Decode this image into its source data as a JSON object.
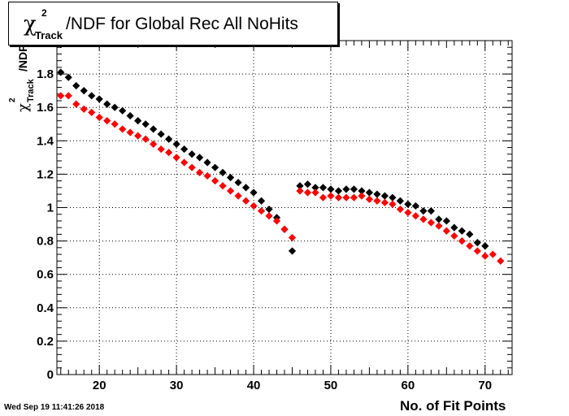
{
  "chart_data": {
    "type": "scatter",
    "title": {
      "symbol": "χ",
      "sup": "2",
      "sub": "Track",
      "rest": "/NDF for Global Rec All NoHits"
    },
    "xlabel": "No. of Fit Points",
    "ylabel": {
      "symbol": "χ",
      "sup": "2",
      "sub": "Track",
      "rest": "/NDF"
    },
    "xlim": [
      14.5,
      73.5
    ],
    "ylim": [
      0,
      2.0
    ],
    "x_ticks": [
      20,
      30,
      40,
      50,
      60,
      70
    ],
    "y_ticks": [
      0,
      0.2,
      0.4,
      0.6,
      0.8,
      1,
      1.2,
      1.4,
      1.6,
      1.8
    ],
    "y_tick_labels": [
      "0",
      "0.2",
      "0.4",
      "0.6",
      "0.8",
      "1",
      "1.2",
      "1.4",
      "1.6",
      "1.8"
    ],
    "grid": true,
    "series": [
      {
        "color": "#000000",
        "x": [
          15,
          16,
          17,
          18,
          19,
          20,
          21,
          22,
          23,
          24,
          25,
          26,
          27,
          28,
          29,
          30,
          31,
          32,
          33,
          34,
          35,
          36,
          37,
          38,
          39,
          40,
          41,
          42,
          43,
          44,
          45,
          46,
          47,
          48,
          49,
          50,
          51,
          52,
          53,
          54,
          55,
          56,
          57,
          58,
          59,
          60,
          61,
          62,
          63,
          64,
          65,
          66,
          67,
          68,
          69,
          70
        ],
        "y": [
          1.81,
          1.78,
          1.73,
          1.7,
          1.67,
          1.65,
          1.62,
          1.6,
          1.58,
          1.55,
          1.52,
          1.5,
          1.47,
          1.44,
          1.41,
          1.38,
          1.35,
          1.32,
          1.3,
          1.27,
          1.24,
          1.21,
          1.18,
          1.15,
          1.12,
          1.09,
          1.04,
          0.99,
          0.94,
          0.87,
          0.74,
          1.13,
          1.14,
          1.12,
          1.12,
          1.11,
          1.1,
          1.11,
          1.11,
          1.1,
          1.09,
          1.08,
          1.07,
          1.06,
          1.04,
          1.02,
          1.01,
          0.98,
          0.98,
          0.93,
          0.92,
          0.88,
          0.86,
          0.84,
          0.79,
          0.77
        ]
      },
      {
        "color": "#ff0000",
        "x": [
          15,
          16,
          17,
          18,
          19,
          20,
          21,
          22,
          23,
          24,
          25,
          26,
          27,
          28,
          29,
          30,
          31,
          32,
          33,
          34,
          35,
          36,
          37,
          38,
          39,
          40,
          41,
          42,
          43,
          44,
          45,
          46,
          47,
          48,
          49,
          50,
          51,
          52,
          53,
          54,
          55,
          56,
          57,
          58,
          59,
          60,
          61,
          62,
          63,
          64,
          65,
          66,
          67,
          68,
          69,
          70,
          71,
          72
        ],
        "y": [
          1.67,
          1.67,
          1.62,
          1.59,
          1.57,
          1.54,
          1.52,
          1.5,
          1.47,
          1.45,
          1.43,
          1.41,
          1.38,
          1.35,
          1.33,
          1.3,
          1.27,
          1.24,
          1.21,
          1.19,
          1.16,
          1.13,
          1.1,
          1.07,
          1.04,
          1.01,
          0.98,
          0.95,
          0.92,
          0.87,
          0.82,
          1.1,
          1.09,
          1.09,
          1.06,
          1.07,
          1.06,
          1.06,
          1.06,
          1.07,
          1.05,
          1.04,
          1.03,
          1.02,
          0.99,
          0.97,
          0.95,
          0.93,
          0.91,
          0.89,
          0.86,
          0.83,
          0.8,
          0.77,
          0.74,
          0.71,
          0.72,
          0.68
        ]
      }
    ]
  },
  "footer": {
    "timestamp": "Wed Sep 19 11:41:26 2018"
  }
}
